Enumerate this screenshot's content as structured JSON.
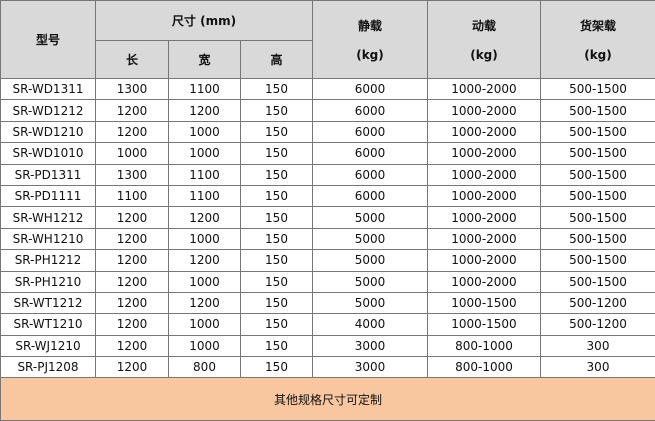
{
  "table": {
    "header": {
      "model": "型号",
      "size": "尺寸 (mm)",
      "length": "长",
      "width": "宽",
      "height": "高",
      "static": [
        "静载",
        "(kg)"
      ],
      "dynamic": [
        "动载",
        "(kg)"
      ],
      "rack": [
        "货架载",
        "(kg)"
      ]
    },
    "rows": [
      [
        "SR-WD1311",
        "1300",
        "1100",
        "150",
        "6000",
        "1000-2000",
        "500-1500"
      ],
      [
        "SR-WD1212",
        "1200",
        "1200",
        "150",
        "6000",
        "1000-2000",
        "500-1500"
      ],
      [
        "SR-WD1210",
        "1200",
        "1000",
        "150",
        "6000",
        "1000-2000",
        "500-1500"
      ],
      [
        "SR-WD1010",
        "1000",
        "1000",
        "150",
        "6000",
        "1000-2000",
        "500-1500"
      ],
      [
        "SR-PD1311",
        "1300",
        "1100",
        "150",
        "6000",
        "1000-2000",
        "500-1500"
      ],
      [
        "SR-PD1111",
        "1100",
        "1100",
        "150",
        "6000",
        "1000-2000",
        "500-1500"
      ],
      [
        "SR-WH1212",
        "1200",
        "1200",
        "150",
        "5000",
        "1000-2000",
        "500-1500"
      ],
      [
        "SR-WH1210",
        "1200",
        "1000",
        "150",
        "5000",
        "1000-2000",
        "500-1500"
      ],
      [
        "SR-PH1212",
        "1200",
        "1200",
        "150",
        "5000",
        "1000-2000",
        "500-1500"
      ],
      [
        "SR-PH1210",
        "1200",
        "1000",
        "150",
        "5000",
        "1000-2000",
        "500-1500"
      ],
      [
        "SR-WT1212",
        "1200",
        "1200",
        "150",
        "5000",
        "1000-1500",
        "500-1200"
      ],
      [
        "SR-WT1210",
        "1200",
        "1000",
        "150",
        "4000",
        "1000-1500",
        "500-1200"
      ],
      [
        "SR-WJ1210",
        "1200",
        "1000",
        "150",
        "3000",
        "800-1000",
        "300"
      ],
      [
        "SR-PJ1208",
        "1200",
        "800",
        "150",
        "3000",
        "800-1000",
        "300"
      ]
    ],
    "footer": "其他规格尺寸可定制"
  }
}
